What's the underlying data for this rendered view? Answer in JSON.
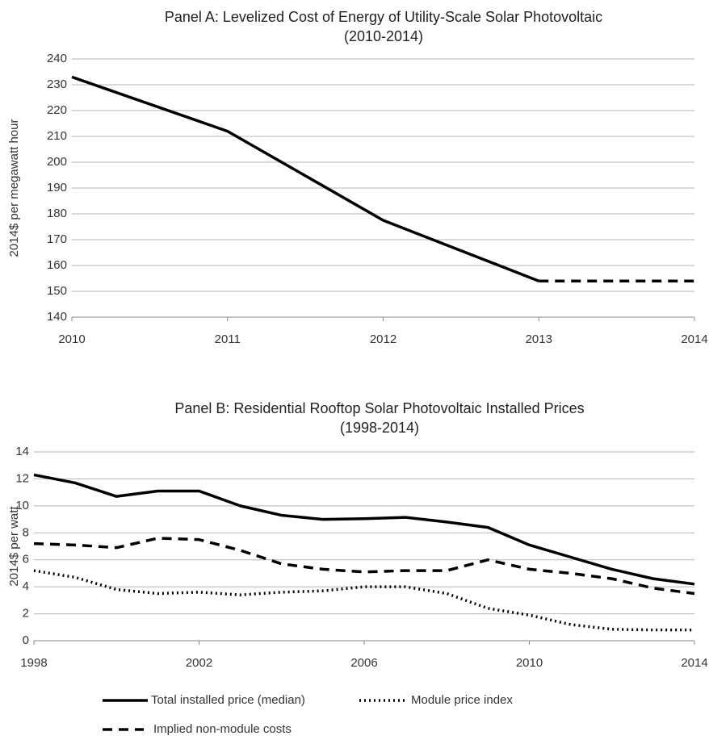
{
  "chart_data": [
    {
      "type": "line",
      "title": "Panel A: Levelized Cost of Energy of Utility-Scale Solar Photovoltaic",
      "subtitle": "(2010-2014)",
      "y_label": "2014$ per megawatt hour",
      "x": [
        2010,
        2011,
        2012,
        2013,
        2014
      ],
      "series": [
        {
          "color": "#000000",
          "dash": "solid",
          "values": [
            233,
            212,
            177.5,
            154,
            null
          ]
        },
        {
          "color": "#000000",
          "dash": "dashed",
          "values": [
            null,
            null,
            null,
            154,
            154
          ]
        }
      ],
      "xlim": [
        2010,
        2014
      ],
      "xticks": [
        2010,
        2011,
        2012,
        2013,
        2014
      ],
      "ylim": [
        140,
        240
      ],
      "yticks": [
        140,
        150,
        160,
        170,
        180,
        190,
        200,
        210,
        220,
        230,
        240
      ],
      "grid": true
    },
    {
      "type": "line",
      "title": "Panel B: Residential Rooftop Solar Photovoltaic Installed Prices",
      "subtitle": "(1998-2014)",
      "y_label": "2014$ per watt",
      "x": [
        1998,
        1999,
        2000,
        2001,
        2002,
        2003,
        2004,
        2005,
        2006,
        2007,
        2008,
        2009,
        2010,
        2011,
        2012,
        2013,
        2014
      ],
      "series": [
        {
          "name": "Total installed price (median)",
          "color": "#000000",
          "dash": "solid",
          "values": [
            12.3,
            11.7,
            10.7,
            11.1,
            11.1,
            10.0,
            9.3,
            9.0,
            9.05,
            9.15,
            8.8,
            8.4,
            7.1,
            6.2,
            5.3,
            4.6,
            4.2
          ]
        },
        {
          "name": "Module price index",
          "color": "#000000",
          "dash": "dotted",
          "values": [
            5.2,
            4.7,
            3.8,
            3.5,
            3.6,
            3.4,
            3.6,
            3.7,
            4.0,
            4.0,
            3.5,
            2.4,
            1.9,
            1.2,
            0.85,
            0.8,
            0.8
          ]
        },
        {
          "name": "Implied non-module costs",
          "color": "#000000",
          "dash": "dashed",
          "values": [
            7.2,
            7.1,
            6.9,
            7.6,
            7.5,
            6.7,
            5.7,
            5.3,
            5.1,
            5.2,
            5.2,
            6.0,
            5.3,
            5.0,
            4.6,
            3.9,
            3.5
          ]
        }
      ],
      "xlim": [
        1998,
        2014
      ],
      "xticks": [
        1998,
        2002,
        2006,
        2010,
        2014
      ],
      "ylim": [
        0,
        14
      ],
      "yticks": [
        0,
        2,
        4,
        6,
        8,
        10,
        12,
        14
      ],
      "grid": true,
      "legend": "bottom"
    }
  ]
}
